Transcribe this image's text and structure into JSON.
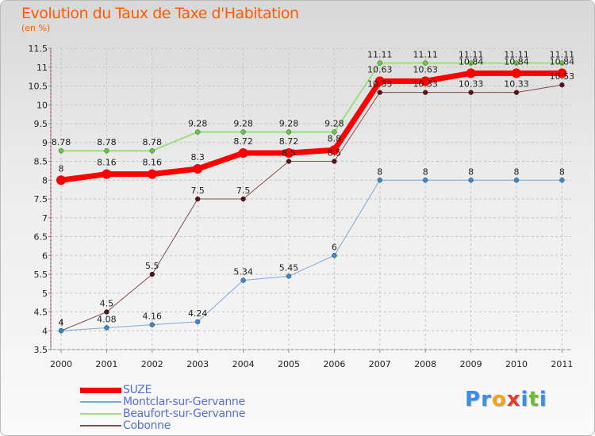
{
  "title": "Evolution du Taux de Taxe d'Habitation",
  "unit_label": "(en %)",
  "logo": {
    "letters": [
      {
        "ch": "P",
        "color": "#3a8ee6"
      },
      {
        "ch": "r",
        "color": "#3a8ee6"
      },
      {
        "ch": "o",
        "color": "#f2a51a"
      },
      {
        "ch": "x",
        "color": "#e0402a"
      },
      {
        "ch": "i",
        "color": "#3a8ee6"
      },
      {
        "ch": "t",
        "color": "#6bbf2a"
      },
      {
        "ch": "i",
        "color": "#3a8ee6"
      }
    ]
  },
  "chart_data": {
    "type": "line",
    "x": [
      "2000",
      "2001",
      "2002",
      "2003",
      "2004",
      "2005",
      "2006",
      "2007",
      "2008",
      "2009",
      "2010",
      "2011"
    ],
    "ylim": [
      3.5,
      11.5
    ],
    "yticks": [
      "3.5",
      "4",
      "4.5",
      "5",
      "5.5",
      "6",
      "6.5",
      "7",
      "7.5",
      "8",
      "8.5",
      "9",
      "9.5",
      "10",
      "10.5",
      "11",
      "11.5"
    ],
    "grid": "horizontal dashed",
    "legend": "bottom-left",
    "series": [
      {
        "name": "SUZE",
        "color": "#ff0000",
        "marker": "#ff0000",
        "width": 7,
        "radius": 6,
        "values": [
          8,
          8.16,
          8.16,
          8.3,
          8.72,
          8.72,
          8.8,
          10.63,
          10.63,
          10.84,
          10.84,
          10.84
        ],
        "labels": [
          "8",
          "8.16",
          "8.16",
          "8.3",
          "8.72",
          "8.72",
          "8.8",
          "10.63",
          "10.63",
          "10.84",
          "10.84",
          "10.84"
        ]
      },
      {
        "name": "Montclar-sur-Gervanne",
        "color": "#7aaad6",
        "marker": "#3a87cc",
        "width": 1,
        "radius": 3,
        "values": [
          4,
          4.08,
          4.16,
          4.24,
          5.34,
          5.45,
          6,
          8,
          8,
          8,
          8,
          8
        ],
        "labels": [
          "4",
          "4.08",
          "4.16",
          "4.24",
          "5.34",
          "5.45",
          "6",
          "8",
          "8",
          "8",
          "8",
          "8"
        ]
      },
      {
        "name": "Beaufort-sur-Gervanne",
        "color": "#9ede82",
        "marker": "#62c83e",
        "width": 2,
        "radius": 3,
        "values": [
          8.78,
          8.78,
          8.78,
          9.28,
          9.28,
          9.28,
          9.28,
          11.11,
          11.11,
          11.11,
          11.11,
          11.11
        ],
        "labels": [
          "8.78",
          "8.78",
          "8.78",
          "9.28",
          "9.28",
          "9.28",
          "9.28",
          "11.11",
          "11.11",
          "11.11",
          "11.11",
          "11.11"
        ]
      },
      {
        "name": "Cobonne",
        "color": "#8a4a4a",
        "marker": "#5a1010",
        "width": 1,
        "radius": 3,
        "values": [
          4,
          4.5,
          5.5,
          7.5,
          7.5,
          8.5,
          8.5,
          10.33,
          10.33,
          10.33,
          10.33,
          10.53
        ],
        "labels": [
          "4",
          "4.5",
          "5.5",
          "7.5",
          "7.5",
          "8.5",
          "8.5",
          "10.33",
          "10.33",
          "10.33",
          "10.33",
          "10.53"
        ]
      }
    ]
  }
}
